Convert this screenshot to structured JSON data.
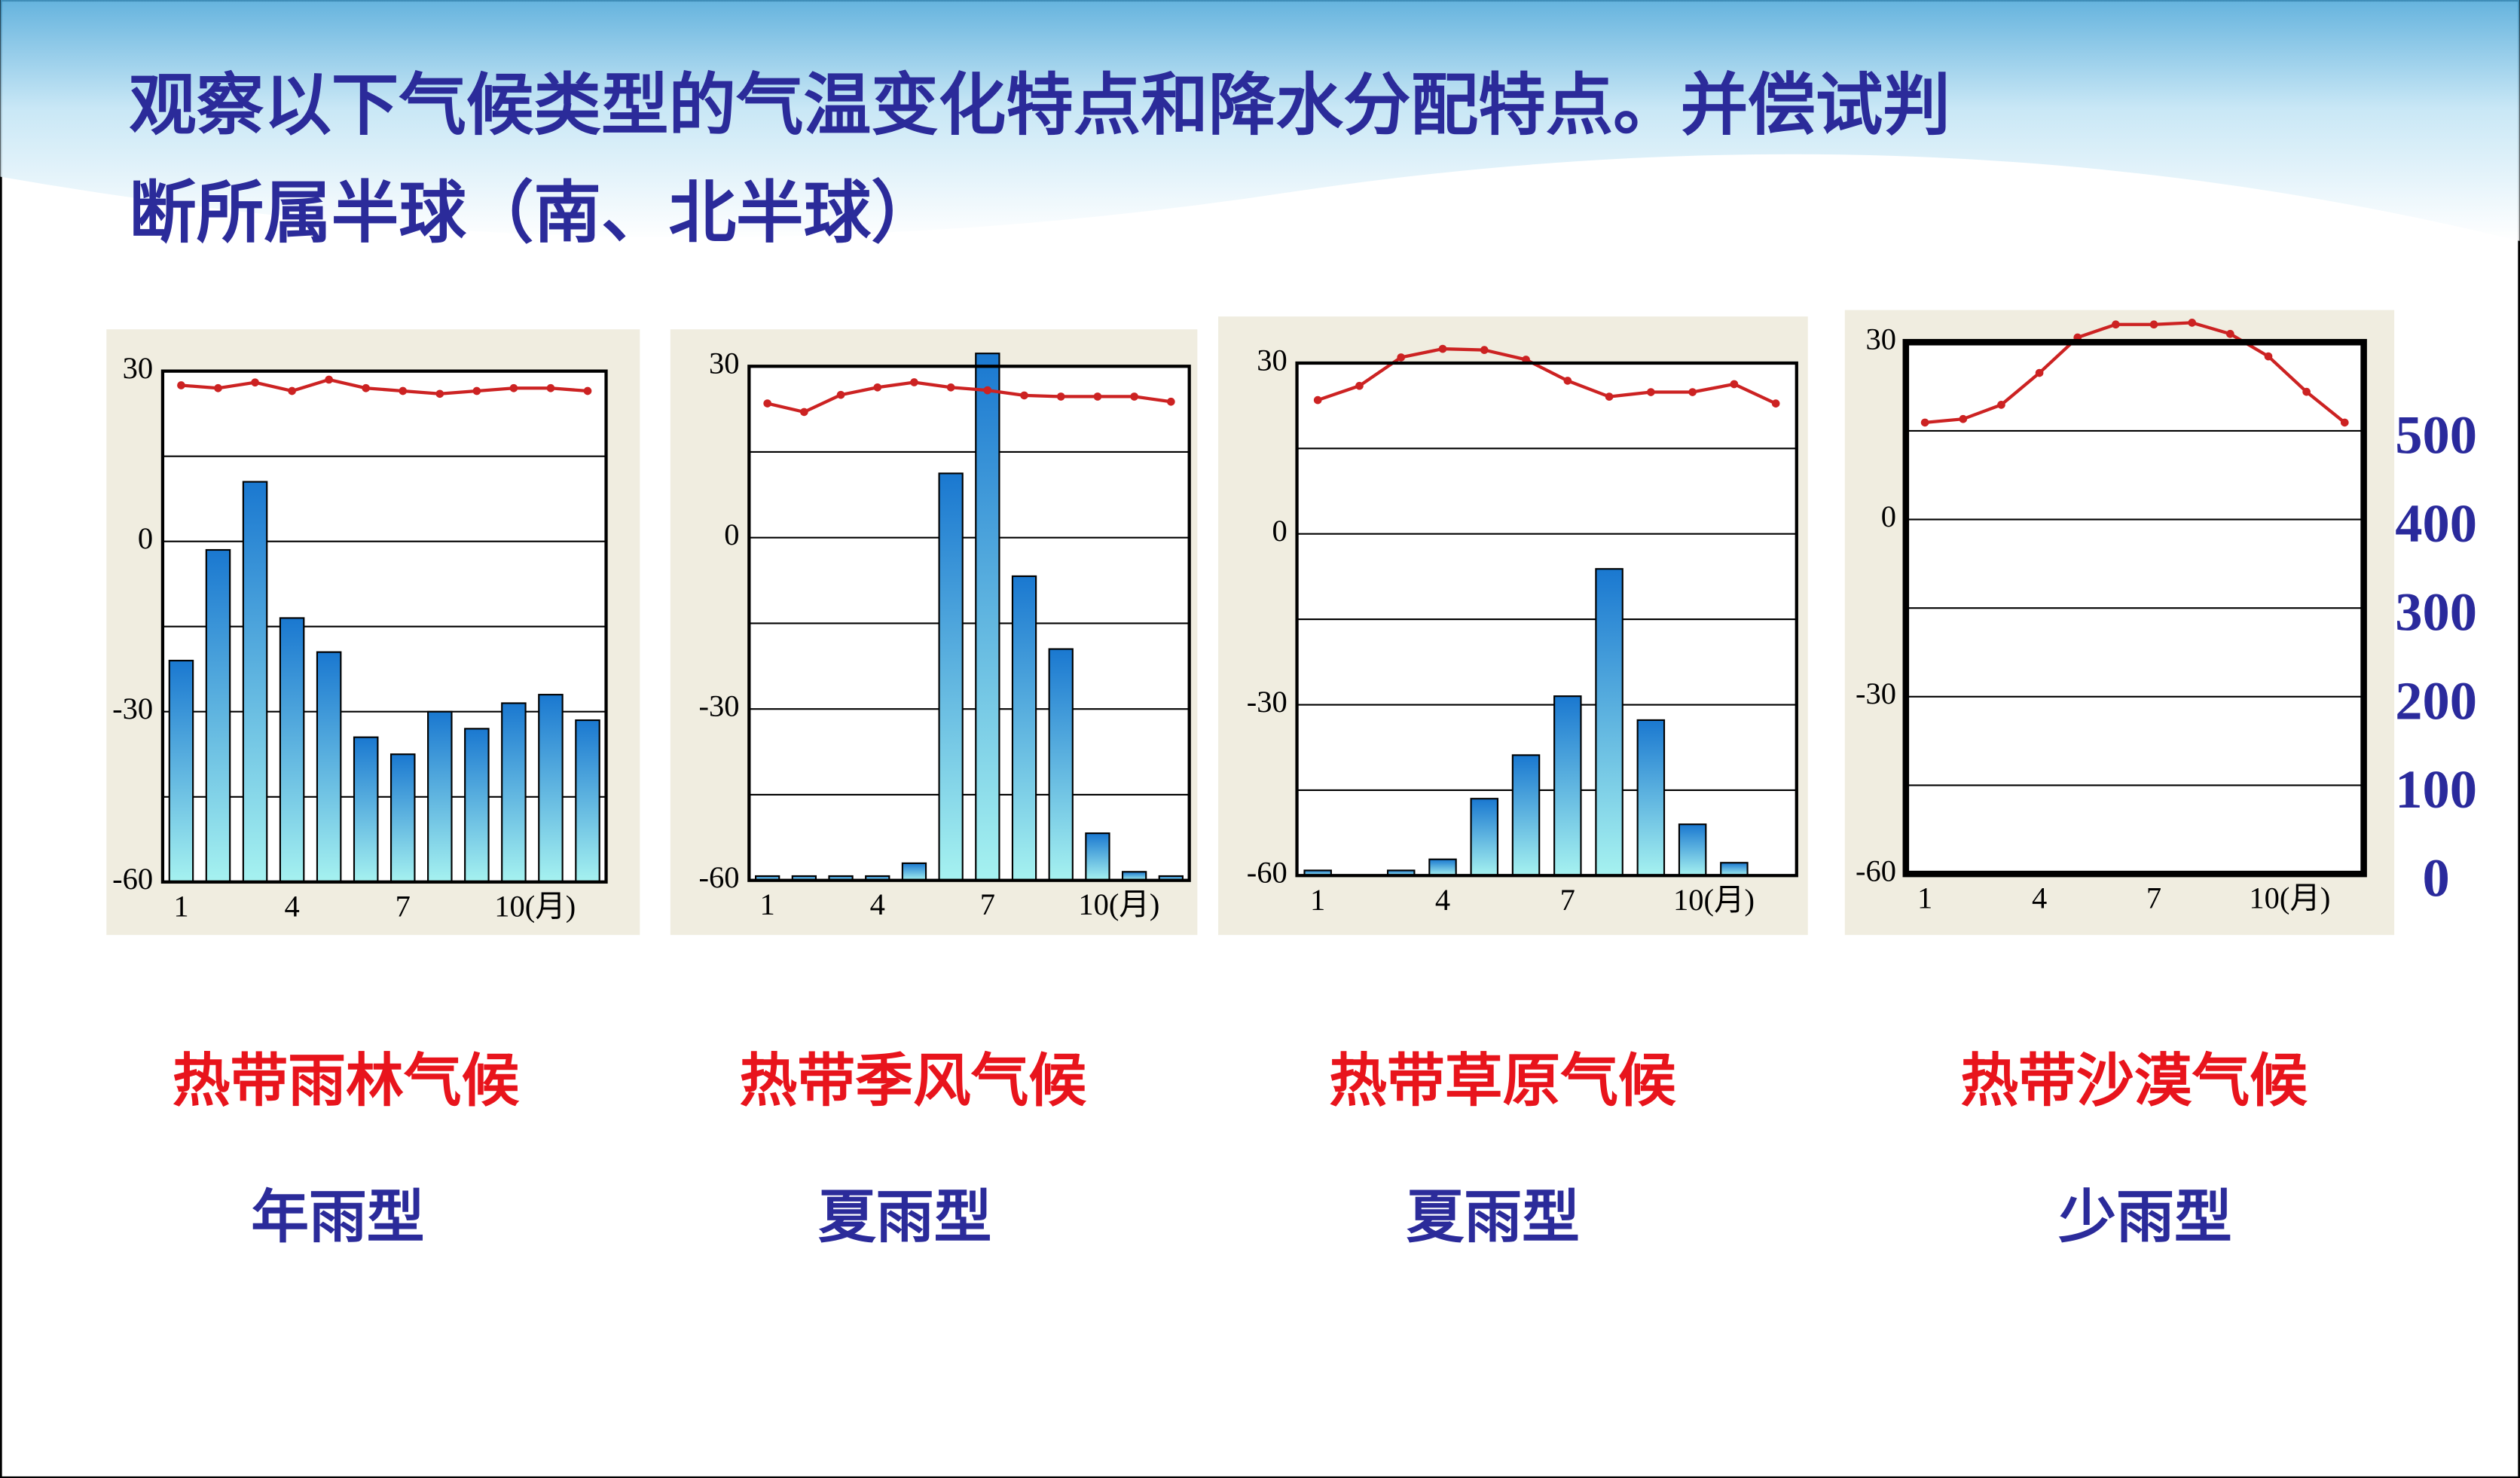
{
  "title_lines": [
    "观察以下气候类型的气温变化特点和降水分配特点。并偿试判",
    "断所属半球（南、北半球）"
  ],
  "chart_data": [
    {
      "type": "bar_line",
      "caption": "热带雨林气候",
      "subcaption": "年雨型",
      "categories": [
        "1",
        null,
        null,
        "4",
        null,
        null,
        "7",
        null,
        null,
        "10(月)",
        null,
        null
      ],
      "temperature": {
        "color": "#cc2222",
        "values": [
          27.5,
          27,
          28,
          26.5,
          28.5,
          27,
          26.5,
          26,
          26.5,
          27,
          27,
          26.5
        ]
      },
      "precipitation": {
        "color": "#1f7fd0",
        "axis": "y2",
        "values": [
          260,
          390,
          470,
          310,
          270,
          170,
          150,
          200,
          180,
          210,
          220,
          190
        ]
      },
      "ylim": [
        -60,
        30
      ],
      "yticks": [
        -60,
        -30,
        0,
        30
      ],
      "ygrid": [
        -45,
        -15,
        15
      ],
      "y2lim": [
        0,
        600
      ]
    },
    {
      "type": "bar_line",
      "caption": "热带季风气候",
      "subcaption": "夏雨型",
      "categories": [
        "1",
        null,
        null,
        "4",
        null,
        null,
        "7",
        null,
        null,
        "10(月)",
        null,
        null
      ],
      "temperature": {
        "color": "#cc2222",
        "values": [
          23.5,
          22,
          25,
          26.3,
          27.2,
          26.3,
          25.8,
          24.9,
          24.7,
          24.7,
          24.7,
          23.8
        ]
      },
      "precipitation": {
        "color": "#1f7fd0",
        "axis": "y2",
        "values": [
          5,
          5,
          5,
          5,
          20,
          475,
          615,
          355,
          270,
          55,
          10,
          5
        ]
      },
      "ylim": [
        -60,
        30
      ],
      "yticks": [
        -60,
        -30,
        0,
        30
      ],
      "ygrid": [
        -45,
        -15,
        15
      ],
      "y2lim": [
        0,
        600
      ]
    },
    {
      "type": "bar_line",
      "caption": "热带草原气候",
      "subcaption": "夏雨型",
      "categories": [
        "1",
        null,
        null,
        "4",
        null,
        null,
        "7",
        null,
        null,
        "10(月)",
        null,
        null
      ],
      "temperature": {
        "color": "#cc2222",
        "values": [
          23.5,
          26,
          31,
          32.5,
          32.3,
          30.6,
          26.9,
          24.1,
          24.9,
          24.9,
          26.3,
          22.9
        ]
      },
      "precipitation": {
        "color": "#1f7fd0",
        "axis": "y2",
        "values": [
          6,
          0,
          6,
          19,
          90,
          141,
          210,
          359,
          182,
          60,
          15,
          0
        ]
      },
      "ylim": [
        -60,
        30
      ],
      "yticks": [
        -60,
        -30,
        0,
        30
      ],
      "ygrid": [
        -45,
        -15,
        15
      ],
      "y2lim": [
        0,
        600
      ]
    },
    {
      "type": "bar_line",
      "caption": "热带沙漠气候",
      "subcaption": "少雨型",
      "categories": [
        "1",
        null,
        null,
        "4",
        null,
        null,
        "7",
        null,
        null,
        "10(月)",
        null,
        null
      ],
      "temperature": {
        "color": "#cc2222",
        "values": [
          16.4,
          17,
          19.4,
          24.8,
          30.8,
          33,
          33,
          33.3,
          31.4,
          27.6,
          21.6,
          16.4
        ]
      },
      "precipitation": {
        "color": "#1f7fd0",
        "axis": "y2",
        "values": [
          0,
          0,
          0,
          0,
          0,
          0,
          0,
          0,
          0,
          0,
          0,
          0
        ]
      },
      "ylim": [
        -60,
        30
      ],
      "yticks": [
        -60,
        -30,
        0,
        30
      ],
      "ygrid": [
        -45,
        -15,
        15
      ],
      "y2lim": [
        0,
        600
      ],
      "y2ticks": [
        0,
        100,
        200,
        300,
        400,
        500
      ]
    }
  ]
}
